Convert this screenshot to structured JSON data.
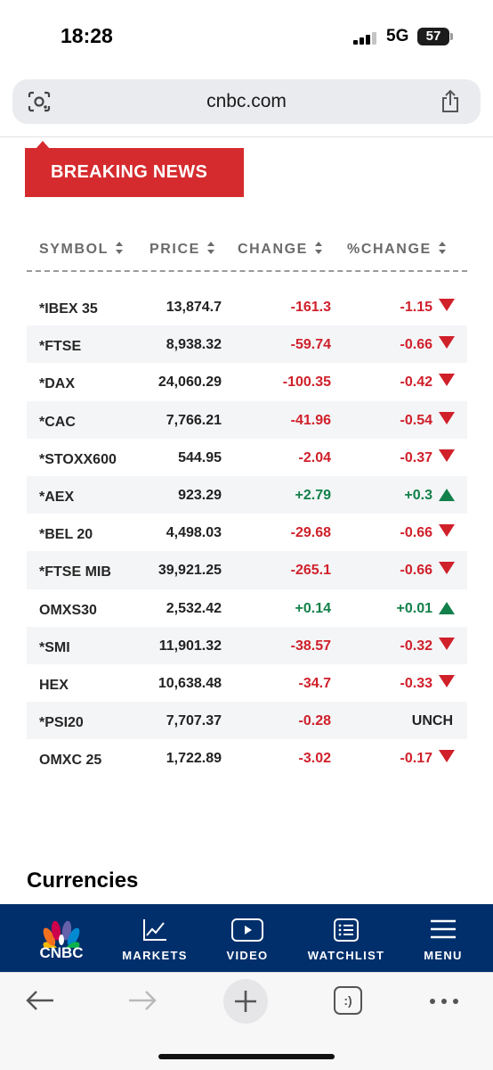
{
  "status_bar": {
    "time": "18:28",
    "network": "5G",
    "battery": "57"
  },
  "address_bar": {
    "url": "cnbc.com"
  },
  "banner": {
    "label": "BREAKING NEWS"
  },
  "table": {
    "headers": {
      "symbol": "SYMBOL",
      "price": "PRICE",
      "change": "CHANGE",
      "pct_change": "%CHANGE"
    },
    "rows": [
      {
        "symbol": "*IBEX 35",
        "price": "13,874.7",
        "change": "-161.3",
        "pct": "-1.15",
        "dir": "down"
      },
      {
        "symbol": "*FTSE",
        "price": "8,938.32",
        "change": "-59.74",
        "pct": "-0.66",
        "dir": "down"
      },
      {
        "symbol": "*DAX",
        "price": "24,060.29",
        "change": "-100.35",
        "pct": "-0.42",
        "dir": "down"
      },
      {
        "symbol": "*CAC",
        "price": "7,766.21",
        "change": "-41.96",
        "pct": "-0.54",
        "dir": "down"
      },
      {
        "symbol": "*STOXX600",
        "price": "544.95",
        "change": "-2.04",
        "pct": "-0.37",
        "dir": "down"
      },
      {
        "symbol": "*AEX",
        "price": "923.29",
        "change": "+2.79",
        "pct": "+0.3",
        "dir": "up"
      },
      {
        "symbol": "*BEL 20",
        "price": "4,498.03",
        "change": "-29.68",
        "pct": "-0.66",
        "dir": "down"
      },
      {
        "symbol": "*FTSE MIB",
        "price": "39,921.25",
        "change": "-265.1",
        "pct": "-0.66",
        "dir": "down"
      },
      {
        "symbol": "OMXS30",
        "price": "2,532.42",
        "change": "+0.14",
        "pct": "+0.01",
        "dir": "up"
      },
      {
        "symbol": "*SMI",
        "price": "11,901.32",
        "change": "-38.57",
        "pct": "-0.32",
        "dir": "down"
      },
      {
        "symbol": "HEX",
        "price": "10,638.48",
        "change": "-34.7",
        "pct": "-0.33",
        "dir": "down"
      },
      {
        "symbol": "*PSI20",
        "price": "7,707.37",
        "change": "-0.28",
        "pct": "UNCH",
        "dir": "unch"
      },
      {
        "symbol": "OMXC 25",
        "price": "1,722.89",
        "change": "-3.02",
        "pct": "-0.17",
        "dir": "down"
      }
    ]
  },
  "section": {
    "currencies_heading": "Currencies"
  },
  "cnbc_nav": {
    "logo_text": "CNBC",
    "items": [
      {
        "label": "MARKETS",
        "icon": "chart-line-icon"
      },
      {
        "label": "VIDEO",
        "icon": "play-icon"
      },
      {
        "label": "WATCHLIST",
        "icon": "list-icon"
      },
      {
        "label": "MENU",
        "icon": "hamburger-icon"
      }
    ]
  },
  "browser_toolbar": {
    "tab_count_glyph": ":)"
  },
  "colors": {
    "brand_navy": "#002f6c",
    "breaking_red": "#d62b2e",
    "negative": "#d0202a",
    "positive": "#12804a"
  }
}
